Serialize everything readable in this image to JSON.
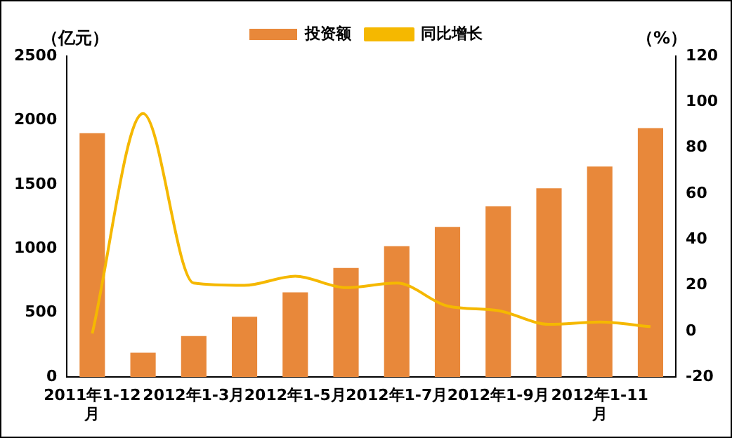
{
  "chart_data": {
    "type": "bar",
    "ylabel": "（亿元）",
    "y2label": "（%）",
    "categories": [
      "2011年1-12月",
      null,
      "2012年1-3月",
      null,
      "2012年1-5月",
      null,
      "2012年1-7月",
      null,
      "2012年1-9月",
      null,
      "2012年1-11月",
      null
    ],
    "series": [
      {
        "name": "投资额",
        "color": "#e8883a",
        "values": [
          1900,
          190,
          320,
          470,
          660,
          850,
          1020,
          1170,
          1330,
          1470,
          1640,
          1940
        ]
      },
      {
        "name": "同比增长",
        "type": "line",
        "axis": "y2",
        "color": "#f5b800",
        "values": [
          -1,
          95,
          21,
          20,
          24,
          19,
          21,
          11,
          9,
          3,
          4,
          2
        ]
      }
    ],
    "ylim": [
      0,
      2500
    ],
    "yticks": [
      0,
      500,
      1000,
      1500,
      2000,
      2500
    ],
    "y2lim": [
      -20,
      120
    ],
    "y2ticks": [
      -20,
      0,
      20,
      40,
      60,
      80,
      100,
      120
    ],
    "legend": "top",
    "grid": false,
    "marker": "none",
    "line_style": "solid"
  }
}
